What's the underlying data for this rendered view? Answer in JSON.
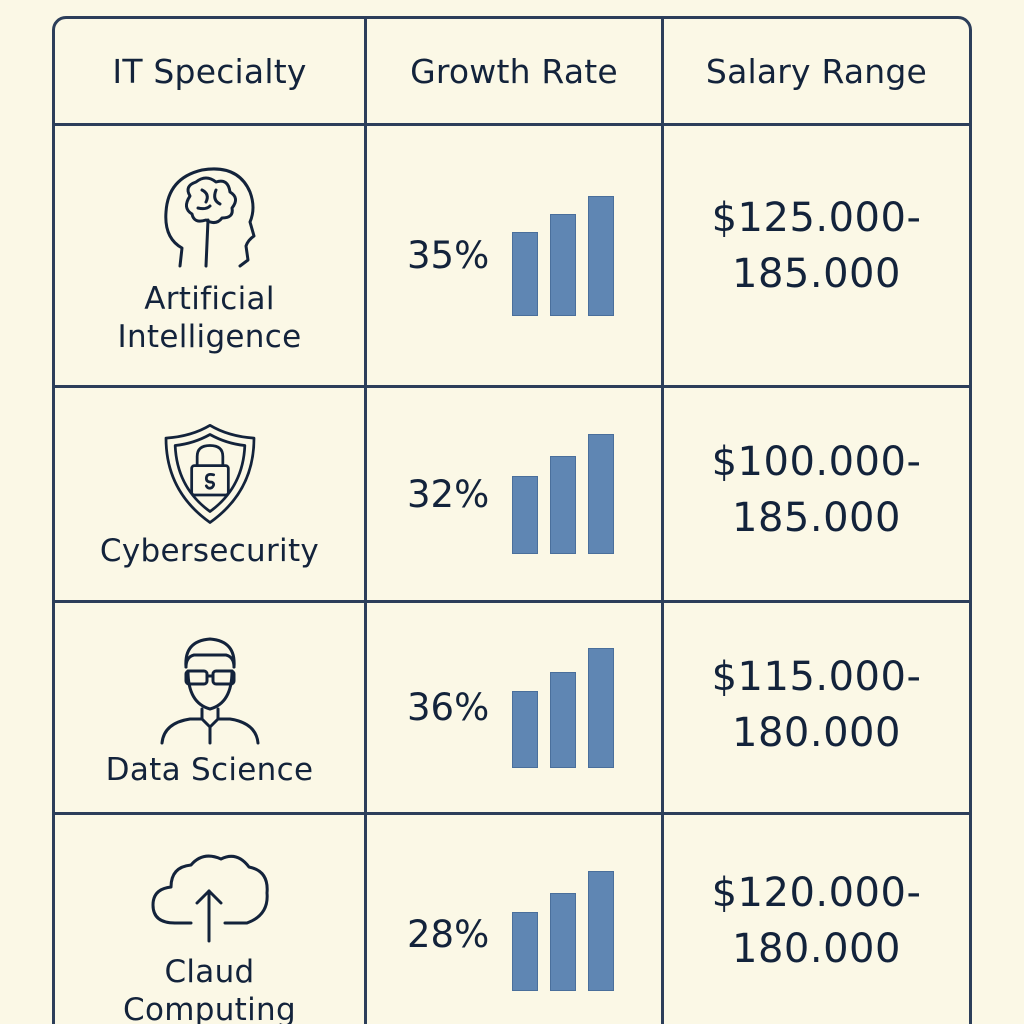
{
  "colors": {
    "background": "#fbf8e6",
    "border": "#2c3e5a",
    "bar": "#5f86b3",
    "text": "#13233b"
  },
  "header": {
    "specialty": "IT Specialty",
    "growth": "Growth Rate",
    "salary": "Salary Range"
  },
  "rows": [
    {
      "icon": "brain-head-icon",
      "label_lines": [
        "Artificial",
        "Intelligence"
      ],
      "growth": "35%",
      "growth_value": 35,
      "salary_line1": "$125.000-",
      "salary_line2": "185.000",
      "bar_levels": [
        0.7,
        0.85,
        1.0
      ]
    },
    {
      "icon": "shield-lock-icon",
      "label_lines": [
        "Cybersecurity"
      ],
      "growth": "32%",
      "growth_value": 32,
      "salary_line1": "$100.000-",
      "salary_line2": "185.000",
      "bar_levels": [
        0.65,
        0.82,
        1.0
      ]
    },
    {
      "icon": "person-glasses-icon",
      "label_lines": [
        "Data Science"
      ],
      "growth": "36%",
      "growth_value": 36,
      "salary_line1": "$115.000-",
      "salary_line2": "180.000",
      "bar_levels": [
        0.64,
        0.8,
        1.0
      ]
    },
    {
      "icon": "cloud-upload-icon",
      "label_lines": [
        "Claud",
        "Computing"
      ],
      "growth": "28%",
      "growth_value": 28,
      "salary_line1": "$120.000-",
      "salary_line2": "180.000",
      "bar_levels": [
        0.66,
        0.82,
        1.0
      ]
    }
  ]
}
